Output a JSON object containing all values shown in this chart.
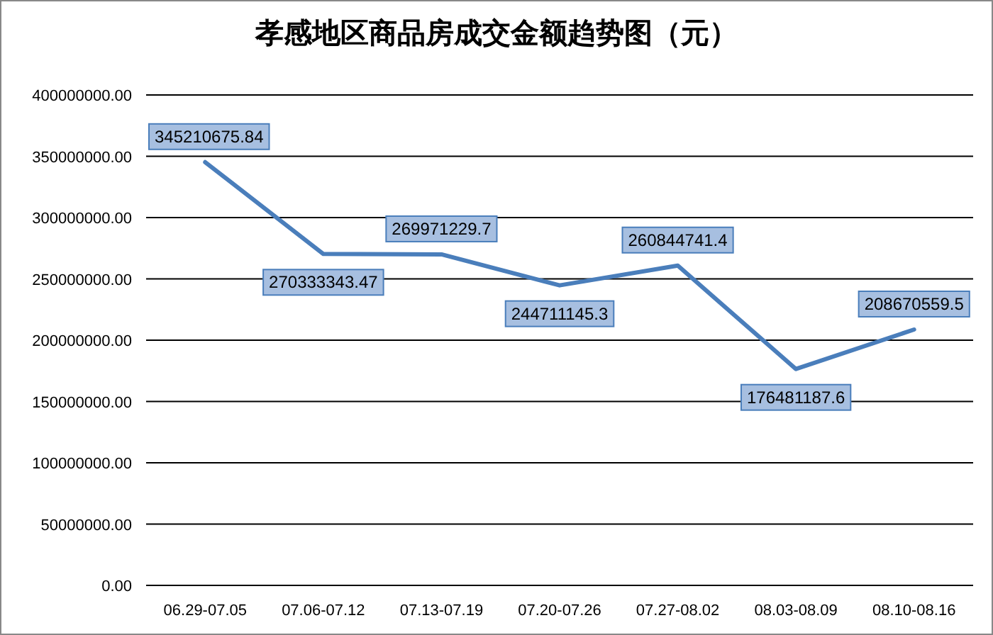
{
  "chart_data": {
    "type": "line",
    "title": "孝感地区商品房成交金额趋势图（元）",
    "categories": [
      "06.29-07.05",
      "07.06-07.12",
      "07.13-07.19",
      "07.20-07.26",
      "07.27-08.02",
      "08.03-08.09",
      "08.10-08.16"
    ],
    "series": [
      {
        "color": "#4a7ebb",
        "values": [
          345210675.84,
          270333343.47,
          269971229.7,
          244711145.3,
          260844741.4,
          176481187.6,
          208670559.5
        ]
      }
    ],
    "ylim": [
      0,
      400000000
    ],
    "yticks": [
      {
        "value": 0,
        "label": "0.00"
      },
      {
        "value": 50000000,
        "label": "50000000.00"
      },
      {
        "value": 100000000,
        "label": "100000000.00"
      },
      {
        "value": 150000000,
        "label": "150000000.00"
      },
      {
        "value": 200000000,
        "label": "200000000.00"
      },
      {
        "value": 250000000,
        "label": "250000000.00"
      },
      {
        "value": 300000000,
        "label": "300000000.00"
      },
      {
        "value": 350000000,
        "label": "350000000.00"
      },
      {
        "value": 400000000,
        "label": "400000000.00"
      }
    ],
    "grid": "y",
    "data_labels": true,
    "marker": "none",
    "line_style": "solid"
  }
}
